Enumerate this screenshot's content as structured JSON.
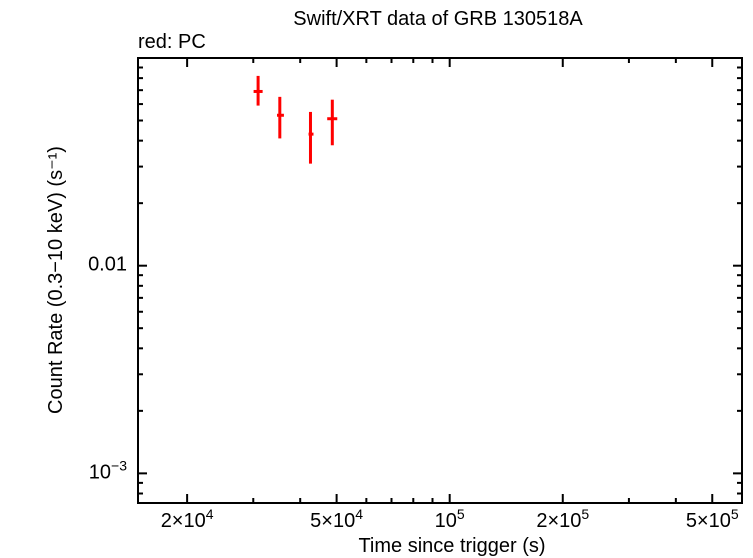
{
  "colors": {
    "background": "#ffffff",
    "axis": "#000000",
    "pc_mode": "#ff0000"
  },
  "chart_data": {
    "type": "scatter",
    "title": "Swift/XRT data of GRB 130518A",
    "legend_label": "red: PC",
    "xlabel": "Time since trigger (s)",
    "ylabel": "Count Rate (0.3−10 keV) (s⁻¹)",
    "xscale": "log",
    "yscale": "log",
    "xlim": [
      14800,
      600000
    ],
    "ylim": [
      0.00072,
      0.1
    ],
    "grid": false,
    "legend_position": "top-left-above-frame",
    "x_major_ticks": [
      {
        "v": 20000,
        "base": "2×10",
        "sup": "4"
      },
      {
        "v": 50000,
        "base": "5×10",
        "sup": "4"
      },
      {
        "v": 100000,
        "base": "10",
        "sup": "5"
      },
      {
        "v": 200000,
        "base": "2×10",
        "sup": "5"
      },
      {
        "v": 500000,
        "base": "5×10",
        "sup": "5"
      }
    ],
    "x_minor_ticks": [
      30000,
      40000,
      60000,
      70000,
      80000,
      90000,
      300000,
      400000
    ],
    "y_major_ticks": [
      {
        "v": 0.01,
        "base": "0.01",
        "sup": ""
      },
      {
        "v": 0.001,
        "base": "10",
        "sup": "−3"
      }
    ],
    "y_minor_ticks": [
      0.0008,
      0.0009,
      0.002,
      0.003,
      0.004,
      0.005,
      0.006,
      0.007,
      0.008,
      0.009,
      0.02,
      0.03,
      0.04,
      0.05,
      0.06,
      0.07,
      0.08,
      0.09
    ],
    "series": [
      {
        "name": "PC",
        "color": "#ff0000",
        "points": [
          {
            "t": 30900,
            "t_lo": 30060,
            "t_hi": 31770,
            "rate": 0.069,
            "rate_lo": 0.059,
            "rate_hi": 0.082
          },
          {
            "t": 35300,
            "t_lo": 34700,
            "t_hi": 36200,
            "rate": 0.053,
            "rate_lo": 0.041,
            "rate_hi": 0.065
          },
          {
            "t": 42600,
            "t_lo": 42100,
            "t_hi": 43400,
            "rate": 0.043,
            "rate_lo": 0.031,
            "rate_hi": 0.055
          },
          {
            "t": 48700,
            "t_lo": 47200,
            "t_hi": 50200,
            "rate": 0.051,
            "rate_lo": 0.038,
            "rate_hi": 0.063
          }
        ]
      }
    ]
  }
}
